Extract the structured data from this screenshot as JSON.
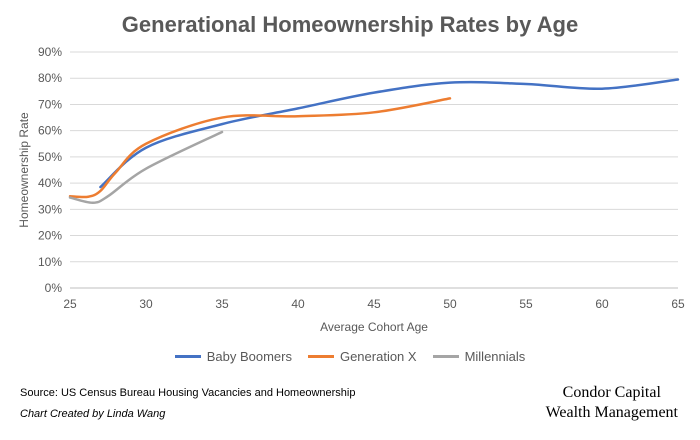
{
  "chart_data": {
    "type": "line",
    "title": "Generational Homeownership Rates by Age",
    "xlabel": "Average Cohort Age",
    "ylabel": "Homeownership Rate",
    "xlim": [
      25,
      65
    ],
    "ylim": [
      0,
      90
    ],
    "x_ticks": [
      "25",
      "30",
      "35",
      "40",
      "45",
      "50",
      "55",
      "60",
      "65"
    ],
    "y_ticks": [
      "0%",
      "10%",
      "20%",
      "30%",
      "40%",
      "50%",
      "60%",
      "70%",
      "80%",
      "90%"
    ],
    "grid": "horizontal",
    "legend_position": "bottom",
    "series": [
      {
        "name": "Baby Boomers",
        "color": "#4472C4",
        "points": [
          [
            27,
            38.5
          ],
          [
            30,
            53.5
          ],
          [
            35,
            62.5
          ],
          [
            40,
            68.5
          ],
          [
            45,
            74.5
          ],
          [
            50,
            78.3
          ],
          [
            55,
            77.8
          ],
          [
            60,
            76
          ],
          [
            65,
            79.5
          ]
        ]
      },
      {
        "name": "Generation X",
        "color": "#ED7D31",
        "points": [
          [
            25,
            35
          ],
          [
            26.2,
            34.8
          ],
          [
            27,
            37
          ],
          [
            28,
            44
          ],
          [
            30,
            55
          ],
          [
            35,
            65
          ],
          [
            40,
            65.5
          ],
          [
            45,
            67
          ],
          [
            50,
            72.3
          ]
        ]
      },
      {
        "name": "Millennials",
        "color": "#A5A5A5",
        "points": [
          [
            25,
            34.5
          ],
          [
            26.5,
            32.5
          ],
          [
            27.5,
            35
          ],
          [
            30,
            45.5
          ],
          [
            35,
            59.5
          ]
        ]
      }
    ]
  },
  "footer": {
    "source": "Source: US Census Bureau Housing Vacancies and Homeownership",
    "credit": "Chart Created by Linda Wang",
    "logo_line1": "Condor Capital",
    "logo_line2": "Wealth Management"
  }
}
